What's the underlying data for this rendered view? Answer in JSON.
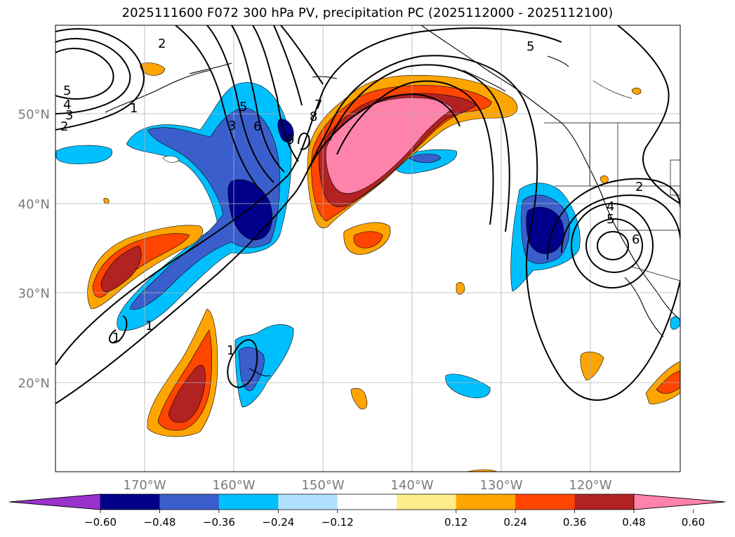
{
  "title": "2025111600 F072 300 hPa PV, precipitation PC (2025112000 - 2025112100)",
  "lon_ticks": [
    "170°W",
    "160°W",
    "150°W",
    "140°W",
    "130°W",
    "120°W"
  ],
  "lat_ticks": [
    "50°N",
    "40°N",
    "30°N",
    "20°N"
  ],
  "colorbar": {
    "levels": [
      "−0.60",
      "−0.48",
      "−0.36",
      "−0.24",
      "−0.12",
      "0.12",
      "0.24",
      "0.36",
      "0.48",
      "0.60"
    ],
    "colors": [
      "#9932cc",
      "#00008b",
      "#3a5fcd",
      "#00bfff",
      "#b0e2ff",
      "#ffffff",
      "#ffec8b",
      "#ffa500",
      "#ff4500",
      "#b22222",
      "#ff82ab"
    ]
  },
  "contour_labels": [
    "2",
    "5",
    "4",
    "3",
    "2",
    "1",
    "5",
    "3",
    "6",
    "7",
    "8",
    "9",
    "5",
    "2",
    "4",
    "5",
    "6",
    "1",
    "1",
    "1"
  ],
  "legend_colors": {
    "strong_negative": "#00008b",
    "mid_negative": "#3a5fcd",
    "weak_negative": "#00bfff",
    "weak_positive": "#ffa500",
    "mid_positive": "#ff4500",
    "strong_positive": "#b22222",
    "extreme_positive": "#ff82ab"
  }
}
